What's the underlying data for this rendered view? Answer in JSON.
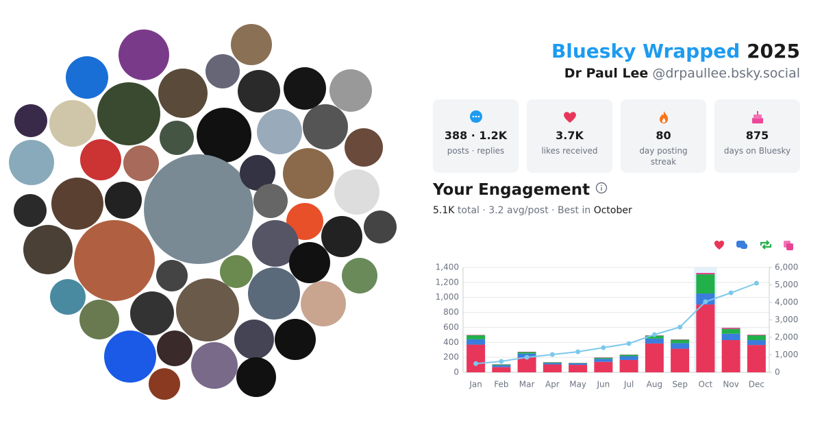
{
  "header": {
    "title": "Bluesky Wrapped",
    "year": "2025",
    "name": "Dr Paul Lee",
    "handle": "@drpaullee.bsky.social"
  },
  "stats": [
    {
      "value": "388 · 1.2K",
      "label": "posts · replies"
    },
    {
      "value": "3.7K",
      "label": "likes received"
    },
    {
      "value": "80",
      "label": "day posting streak"
    },
    {
      "value": "875",
      "label": "days on Bluesky"
    }
  ],
  "engagement": {
    "title": "Your Engagement",
    "total": "5.1K",
    "text": "total · 3.2 avg/post · Best in",
    "best": "October"
  },
  "chart_data": {
    "type": "bar",
    "stacked": true,
    "categories": [
      "Jan",
      "Feb",
      "Mar",
      "Apr",
      "May",
      "Jun",
      "Jul",
      "Aug",
      "Sep",
      "Oct",
      "Nov",
      "Dec"
    ],
    "series": [
      {
        "color": "#e8365a",
        "values": [
          370,
          70,
          200,
          105,
          100,
          140,
          165,
          385,
          315,
          905,
          430,
          365
        ]
      },
      {
        "color": "#3b7ddd",
        "values": [
          70,
          25,
          50,
          20,
          20,
          40,
          50,
          65,
          75,
          147,
          85,
          65
        ]
      },
      {
        "color": "#22b04b",
        "values": [
          55,
          10,
          20,
          10,
          6,
          15,
          20,
          40,
          45,
          256,
          65,
          65
        ]
      },
      {
        "color": "#e84393",
        "values": [
          5,
          3,
          5,
          2,
          2,
          5,
          3,
          4,
          5,
          19,
          15,
          8
        ]
      },
      {
        "type": "line",
        "axis": "y2",
        "color": "#7cc8ec",
        "values": [
          500,
          627,
          860,
          1020,
          1176,
          1412,
          1647,
          2157,
          2588,
          4039,
          4549,
          5098
        ]
      }
    ],
    "ylim": [
      0,
      1400
    ],
    "yticks": [
      0,
      200,
      400,
      600,
      800,
      {
        "value": 1000,
        "label": "1,000"
      },
      {
        "value": 1200,
        "label": "1,200"
      },
      {
        "value": 1400,
        "label": "1,400"
      }
    ],
    "y2lim": [
      0,
      6000
    ],
    "y2ticks": [
      0,
      {
        "value": 1000,
        "label": "1,000"
      },
      {
        "value": 2000,
        "label": "2,000"
      },
      {
        "value": 3000,
        "label": "3,000"
      },
      {
        "value": 4000,
        "label": "4,000"
      },
      {
        "value": 5000,
        "label": "5,000"
      },
      {
        "value": 6000,
        "label": "6,000"
      }
    ],
    "grid": true
  }
}
